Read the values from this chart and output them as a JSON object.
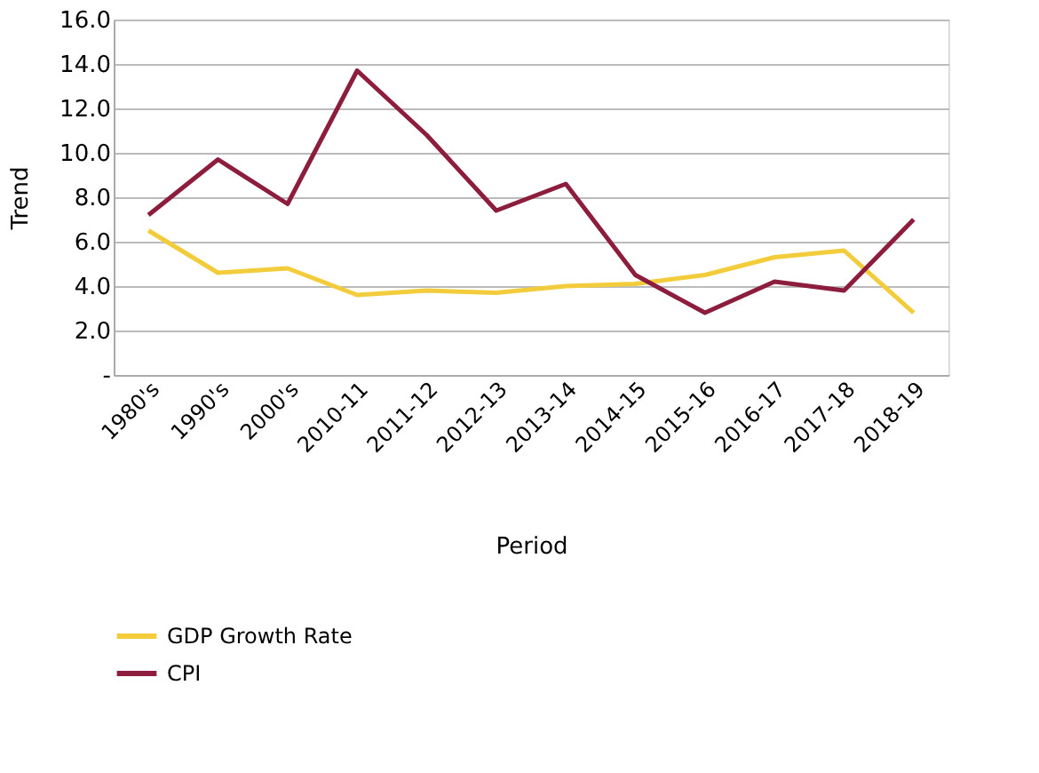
{
  "chart_data": {
    "type": "line",
    "xlabel": "Period",
    "ylabel": "Trend",
    "categories": [
      "1980's",
      "1990's",
      "2000's",
      "2010-11",
      "2011-12",
      "2012-13",
      "2013-14",
      "2014-15",
      "2015-16",
      "2016-17",
      "2017-18",
      "2018-19"
    ],
    "series": [
      {
        "name": "GDP Growth Rate",
        "color": "#f2cc3a",
        "values": [
          6.5,
          4.6,
          4.8,
          3.6,
          3.8,
          3.7,
          4.0,
          4.1,
          4.5,
          5.3,
          5.6,
          2.8
        ]
      },
      {
        "name": "CPI",
        "color": "#8c1d3c",
        "values": [
          7.2,
          9.7,
          7.7,
          13.7,
          10.8,
          7.4,
          8.6,
          4.5,
          2.8,
          4.2,
          3.8,
          7.0
        ]
      }
    ],
    "ylim": [
      0,
      16
    ],
    "yticks": [
      {
        "value": 0,
        "label": "-"
      },
      {
        "value": 2,
        "label": "2.0"
      },
      {
        "value": 4,
        "label": "4.0"
      },
      {
        "value": 6,
        "label": "6.0"
      },
      {
        "value": 8,
        "label": "8.0"
      },
      {
        "value": 10,
        "label": "10.0"
      },
      {
        "value": 12,
        "label": "12.0"
      },
      {
        "value": 14,
        "label": "14.0"
      },
      {
        "value": 16,
        "label": "16.0"
      }
    ],
    "grid": "y",
    "legend": "bottom",
    "marker": "none",
    "line_style": "solid"
  }
}
